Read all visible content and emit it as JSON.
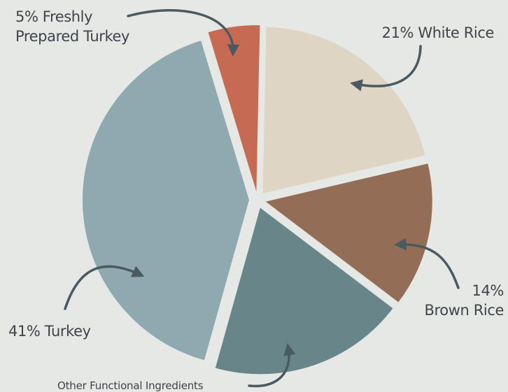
{
  "chart_data": {
    "type": "pie",
    "title": "",
    "legend": "none",
    "slices": [
      {
        "key": "white-rice",
        "value": 21,
        "color": "#dfd5c4",
        "label_lines": [
          "21% White Rice"
        ]
      },
      {
        "key": "brown-rice",
        "value": 14,
        "color": "#936d55",
        "label_lines": [
          "14%",
          "Brown Rice"
        ]
      },
      {
        "key": "other-functional-ingredients",
        "value": 19,
        "color": "#68868a",
        "label_lines": [
          "Other Functional Ingredients"
        ]
      },
      {
        "key": "turkey",
        "value": 41,
        "color": "#8ea9b0",
        "label_lines": [
          "41% Turkey"
        ]
      },
      {
        "key": "freshly-prepared-turkey",
        "value": 5,
        "color": "#c76a53",
        "label_lines": [
          "5% Freshly",
          "Prepared Turkey"
        ]
      }
    ]
  },
  "colors": {
    "background": "#e5e8e4",
    "arrow": "#4a5a60",
    "label_text": "#3e4449"
  }
}
